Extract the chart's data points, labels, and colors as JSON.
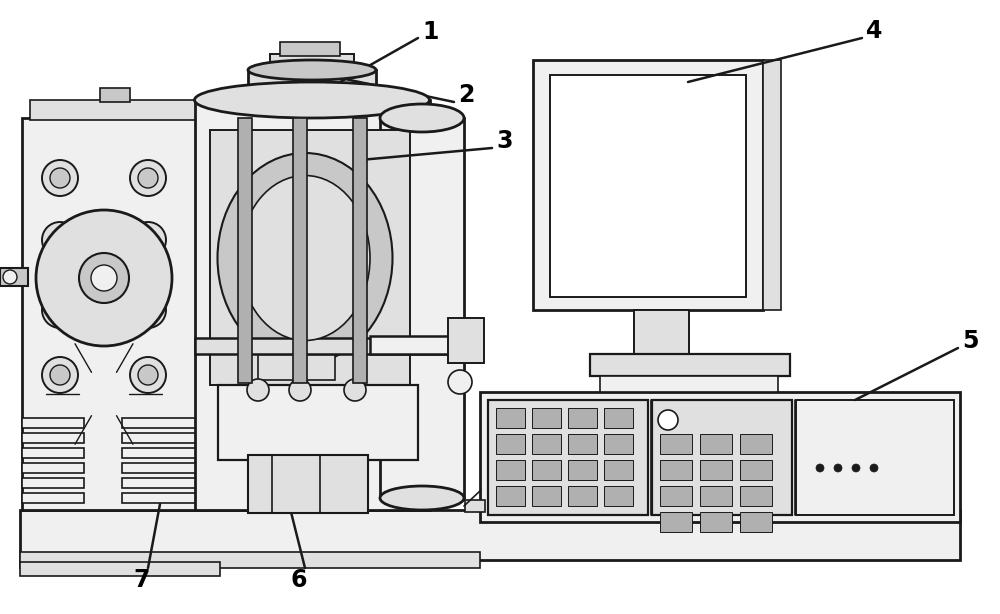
{
  "bg_color": "#ffffff",
  "line_color": "#1a1a1a",
  "label_color": "#000000",
  "figsize": [
    10.0,
    6.14
  ],
  "dpi": 100,
  "label_fontsize": 17,
  "ann_lw": 1.8,
  "main_lw": 2.0,
  "thin_lw": 1.2,
  "fill_light": "#f0f0f0",
  "fill_mid": "#e0e0e0",
  "fill_dark": "#c8c8c8",
  "fill_darker": "#b0b0b0",
  "fill_white": "#ffffff"
}
